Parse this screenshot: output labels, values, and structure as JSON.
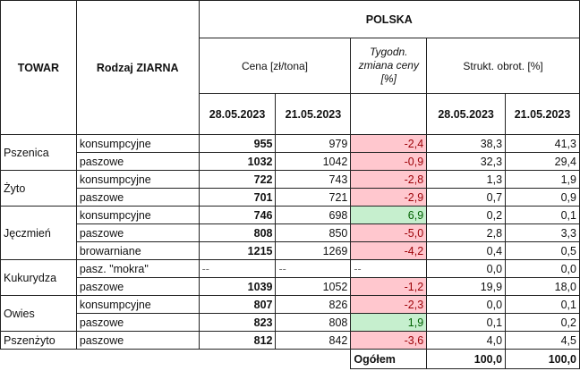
{
  "header": {
    "towar": "TOWAR",
    "rodzaj": "Rodzaj ZIARNA",
    "region": "POLSKA",
    "cena": "Cena [zł/tona]",
    "zmiana": "Tygodn. zmiana ceny [%]",
    "strukt": "Strukt. obrot. [%]",
    "date1": "28.05.2023",
    "date2": "21.05.2023",
    "date3": "28.05.2023",
    "date4": "21.05.2023"
  },
  "colors": {
    "negative_fill": "#ffc7ce",
    "negative_text": "#9c0006",
    "positive_fill": "#c6efce",
    "positive_text": "#006100"
  },
  "rows": [
    {
      "towar": "Pszenica",
      "rodzaj": "konsumpcyjne",
      "c1": "955",
      "c2": "979",
      "z": "-2,4",
      "s1": "38,3",
      "s2": "41,3",
      "t": "neg"
    },
    {
      "towar": "",
      "rodzaj": "paszowe",
      "c1": "1032",
      "c2": "1042",
      "z": "-0,9",
      "s1": "32,3",
      "s2": "29,4",
      "t": "neg"
    },
    {
      "towar": "Żyto",
      "rodzaj": "konsumpcyjne",
      "c1": "722",
      "c2": "743",
      "z": "-2,8",
      "s1": "1,3",
      "s2": "1,9",
      "t": "neg"
    },
    {
      "towar": "",
      "rodzaj": "paszowe",
      "c1": "701",
      "c2": "721",
      "z": "-2,9",
      "s1": "0,7",
      "s2": "0,9",
      "t": "neg"
    },
    {
      "towar": "Jęczmień",
      "rodzaj": "konsumpcyjne",
      "c1": "746",
      "c2": "698",
      "z": "6,9",
      "s1": "0,2",
      "s2": "0,1",
      "t": "pos"
    },
    {
      "towar": "",
      "rodzaj": "paszowe",
      "c1": "808",
      "c2": "850",
      "z": "-5,0",
      "s1": "2,8",
      "s2": "3,3",
      "t": "neg"
    },
    {
      "towar": "",
      "rodzaj": "browarniane",
      "c1": "1215",
      "c2": "1269",
      "z": "-4,2",
      "s1": "0,4",
      "s2": "0,5",
      "t": "neg"
    },
    {
      "towar": "Kukurydza",
      "rodzaj": "pasz. \"mokra\"",
      "c1": "--",
      "c2": "--",
      "z": "--",
      "s1": "0,0",
      "s2": "0,0",
      "t": "none"
    },
    {
      "towar": "",
      "rodzaj": "paszowe",
      "c1": "1039",
      "c2": "1052",
      "z": "-1,2",
      "s1": "19,9",
      "s2": "18,0",
      "t": "neg"
    },
    {
      "towar": "Owies",
      "rodzaj": "konsumpcyjne",
      "c1": "807",
      "c2": "826",
      "z": "-2,3",
      "s1": "0,0",
      "s2": "0,1",
      "t": "neg"
    },
    {
      "towar": "",
      "rodzaj": "paszowe",
      "c1": "823",
      "c2": "808",
      "z": "1,9",
      "s1": "0,1",
      "s2": "0,2",
      "t": "pos"
    },
    {
      "towar": "Pszenżyto",
      "rodzaj": "paszowe",
      "c1": "812",
      "c2": "842",
      "z": "-3,6",
      "s1": "4,0",
      "s2": "4,5",
      "t": "neg"
    }
  ],
  "total": {
    "label": "Ogółem",
    "s1": "100,0",
    "s2": "100,0"
  }
}
